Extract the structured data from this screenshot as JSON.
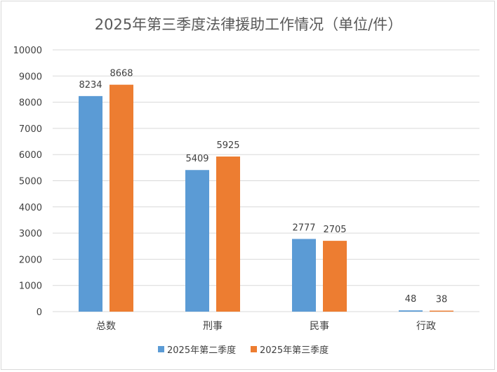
{
  "chart_data": {
    "type": "bar",
    "title": "2025年第三季度法律援助工作情况（单位/件）",
    "categories": [
      "总数",
      "刑事",
      "民事",
      "行政"
    ],
    "series": [
      {
        "name": "2025年第二季度",
        "values": [
          8234,
          5409,
          2777,
          48
        ],
        "color": "#5B9BD5"
      },
      {
        "name": "2025年第三季度",
        "values": [
          8668,
          5925,
          2705,
          38
        ],
        "color": "#ED7D31"
      }
    ],
    "xlabel": "",
    "ylabel": "",
    "ylim": [
      0,
      10000
    ],
    "yticks": [
      0,
      1000,
      2000,
      3000,
      4000,
      5000,
      6000,
      7000,
      8000,
      9000,
      10000
    ],
    "grid": true,
    "legend": "bottom",
    "data_labels": true
  }
}
